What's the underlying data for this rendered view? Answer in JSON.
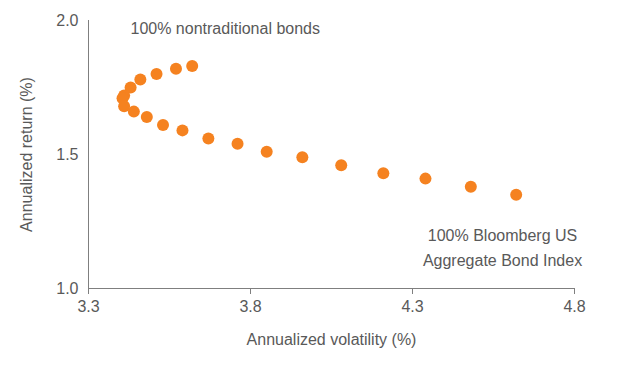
{
  "chart_data": {
    "type": "scatter",
    "x_label": "Annualized volatility (%)",
    "y_label": "Annualized return (%)",
    "annotations": [
      "100% nontraditional bonds",
      "100% Bloomberg US\nAggregate Bond Index"
    ],
    "color": "#f58220",
    "marker": "circle",
    "grid": false,
    "x": [
      3.62,
      3.57,
      3.51,
      3.46,
      3.43,
      3.41,
      3.405,
      3.41,
      3.44,
      3.48,
      3.53,
      3.59,
      3.67,
      3.76,
      3.85,
      3.96,
      4.08,
      4.21,
      4.34,
      4.48,
      4.62
    ],
    "values": [
      1.83,
      1.82,
      1.8,
      1.78,
      1.75,
      1.72,
      1.71,
      1.68,
      1.66,
      1.64,
      1.61,
      1.59,
      1.56,
      1.54,
      1.51,
      1.49,
      1.46,
      1.43,
      1.41,
      1.38,
      1.35
    ],
    "xlim": [
      3.3,
      4.8
    ],
    "xticks": [
      3.3,
      3.8,
      4.3,
      4.8
    ],
    "ylim": [
      1.0,
      2.0
    ],
    "yticks": [
      {
        "value": 1.0,
        "label": "1.0"
      },
      1.5,
      {
        "value": 2.0,
        "label": "2.0"
      }
    ]
  }
}
